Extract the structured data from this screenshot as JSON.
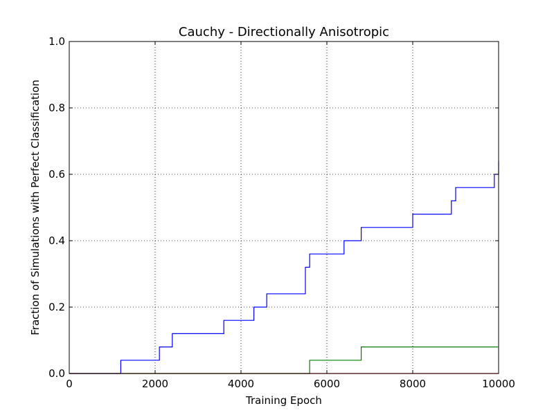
{
  "chart_data": {
    "type": "line",
    "step": true,
    "title": "Cauchy - Directionally Anisotropic",
    "xlabel": "Training Epoch",
    "ylabel": "Fraction of Simulations with Perfect Classification",
    "xlim": [
      0,
      10000
    ],
    "ylim": [
      0,
      1.0
    ],
    "xticks": [
      0,
      2000,
      4000,
      6000,
      8000,
      10000
    ],
    "xtick_labels": [
      "0",
      "2000",
      "4000",
      "6000",
      "8000",
      "10000"
    ],
    "yticks": [
      0,
      0.2,
      0.4,
      0.6,
      0.8,
      1.0
    ],
    "ytick_labels": [
      "0.0",
      "0.2",
      "0.4",
      "0.6",
      "0.8",
      "1.0"
    ],
    "grid": true,
    "series": [
      {
        "color": "#0000ff",
        "x": [
          0,
          1200,
          2100,
          2400,
          3600,
          4300,
          4600,
          5500,
          5600,
          6400,
          6800,
          8000,
          8900,
          9000,
          9900,
          10000
        ],
        "y": [
          0,
          0.04,
          0.08,
          0.12,
          0.16,
          0.2,
          0.24,
          0.32,
          0.36,
          0.4,
          0.44,
          0.48,
          0.52,
          0.56,
          0.6,
          0.64
        ]
      },
      {
        "color": "#008000",
        "x": [
          0,
          5600,
          6800,
          10000
        ],
        "y": [
          0,
          0.04,
          0.08,
          0.08
        ]
      },
      {
        "color": "#ff0000",
        "x": [
          0,
          10000
        ],
        "y": [
          0,
          0
        ]
      }
    ]
  }
}
